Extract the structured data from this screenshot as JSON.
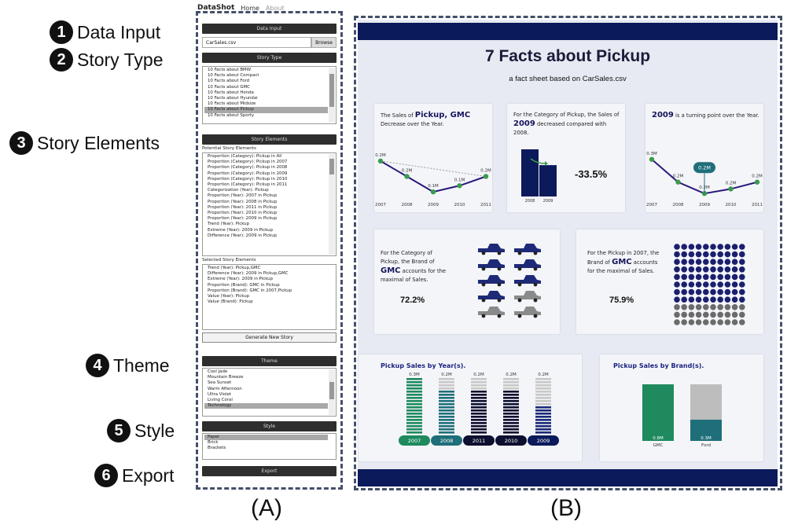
{
  "annotations": [
    {
      "num": "1",
      "label": "Data Input"
    },
    {
      "num": "2",
      "label": "Story Type"
    },
    {
      "num": "3",
      "label": "Story Elements"
    },
    {
      "num": "4",
      "label": "Theme"
    },
    {
      "num": "5",
      "label": "Style"
    },
    {
      "num": "6",
      "label": "Export"
    }
  ],
  "captions": {
    "a": "(A)",
    "b": "(B)"
  },
  "app": {
    "brand": "DataShot",
    "nav": [
      "Home",
      "About"
    ]
  },
  "controls": {
    "data_input": {
      "section": "Data Input",
      "file": "CarSales.csv",
      "browse": "Browse"
    },
    "story_type": {
      "section": "Story Type",
      "items": [
        "10 Facts about BMW",
        "10 Facts about Compact",
        "10 Facts about Ford",
        "10 Facts about GMC",
        "10 Facts about Honda",
        "10 Facts about Hyundai",
        "10 Facts about Midsize",
        "10 Facts about Pickup",
        "10 Facts about Sporty"
      ],
      "selected": "10 Facts about Pickup"
    },
    "story_elements": {
      "section": "Story Elements",
      "potential_label": "Potential Story Elements",
      "potential": [
        "Proportion (Category): Pickup in All",
        "Proportion (Category): Pickup in 2007",
        "Proportion (Category): Pickup in 2008",
        "Proportion (Category): Pickup in 2009",
        "Proportion (Category): Pickup in 2010",
        "Proportion (Category): Pickup in 2011",
        "Categorization (Year): Pickup",
        "Proportion (Year): 2007 in Pickup",
        "Proportion (Year): 2008 in Pickup",
        "Proportion (Year): 2011 in Pickup",
        "Proportion (Year): 2010 in Pickup",
        "Proportion (Year): 2009 in Pickup",
        "Trend (Year): Pickup",
        "Extreme (Year): 2009 in Pickup",
        "Difference (Year): 2009 in Pickup"
      ],
      "selected_label": "Selected Story Elements",
      "selected": [
        "Trend (Year): Pickup,GMC",
        "Difference (Year): 2009 in Pickup,GMC",
        "Extreme (Year): 2009 in Pickup",
        "Proportion (Brand): GMC in Pickup",
        "Proportion (Brand): GMC in 2007,Pickup",
        "Value (Year): Pickup",
        "Value (Brand): Pickup"
      ],
      "generate": "Generate New Story"
    },
    "theme": {
      "section": "Theme",
      "items": [
        "Cool Jade",
        "Mountain Breeze",
        "Sea Sunset",
        "Warm Afternoon",
        "Ultra Violet",
        "Living Coral",
        "Technology"
      ],
      "selected": "Technology"
    },
    "style": {
      "section": "Style",
      "items": [
        "Paper",
        "Brick",
        "Brackets"
      ],
      "selected": "Paper"
    },
    "export": {
      "section": "Export"
    }
  },
  "sheet": {
    "title": "7 Facts about Pickup",
    "subtitle": "a fact sheet based on CarSales.csv",
    "fact1": {
      "pre": "The Sales of ",
      "hl": "Pickup, GMC",
      "post": "Decrease over the Year."
    },
    "fact2": {
      "pre": "For the Category of Pickup, the Sales of ",
      "hl": "2009",
      "post": " decreased compared with 2008.",
      "pct": "-33.5%"
    },
    "fact3": {
      "hl": "2009",
      "post": " is a turning point over the Year.",
      "bubble": "0.2M"
    },
    "fact4": {
      "pre": "For the Category of Pickup, the Brand of ",
      "hl": "GMC",
      "post": " accounts for the maximal of Sales.",
      "pct": "72.2%"
    },
    "fact5": {
      "pre": "For the Pickup in 2007, the Brand of ",
      "hl": "GMC",
      "post": " accounts for the maximal of Sales.",
      "pct": "75.9%"
    },
    "fact6": {
      "title": "Pickup Sales by Year(s)."
    },
    "fact7": {
      "title": "Pickup Sales by Brand(s)."
    }
  },
  "chart_data": [
    {
      "type": "line",
      "x": [
        "2007",
        "2008",
        "2009",
        "2010",
        "2011"
      ],
      "labels": [
        "0.2M",
        "0.2M",
        "0.1M",
        "0.1M",
        "0.2M"
      ],
      "values": [
        0.2,
        0.15,
        0.1,
        0.12,
        0.15
      ]
    },
    {
      "type": "bar",
      "categories": [
        "2008",
        "2009"
      ],
      "values": [
        1.0,
        0.665
      ]
    },
    {
      "type": "line",
      "x": [
        "2007",
        "2008",
        "2009",
        "2010",
        "2011"
      ],
      "labels": [
        "0.3M",
        "0.2M",
        "0.2M",
        "0.2M",
        "0.2M"
      ],
      "values": [
        0.3,
        0.2,
        0.15,
        0.17,
        0.2
      ]
    },
    {
      "type": "bar",
      "categories": [
        "2007",
        "2008",
        "2011",
        "2010",
        "2009"
      ],
      "labels": [
        "0.3M",
        "0.2M",
        "0.2M",
        "0.2M",
        "0.2M"
      ],
      "values": [
        0.3,
        0.2,
        0.2,
        0.2,
        0.2
      ]
    },
    {
      "type": "bar",
      "categories": [
        "GMC",
        "Ford"
      ],
      "labels": [
        "0.8M",
        "0.3M"
      ],
      "values": [
        0.8,
        0.3
      ]
    }
  ],
  "colors": {
    "navy": "#0b1a5a",
    "green": "#1e8a5e",
    "teal": "#1f6f7a",
    "dark": "#0e0e30",
    "grey": "#8a8a8a",
    "line_purple": "#2a1a7a",
    "point_green": "#3c9a4c"
  }
}
